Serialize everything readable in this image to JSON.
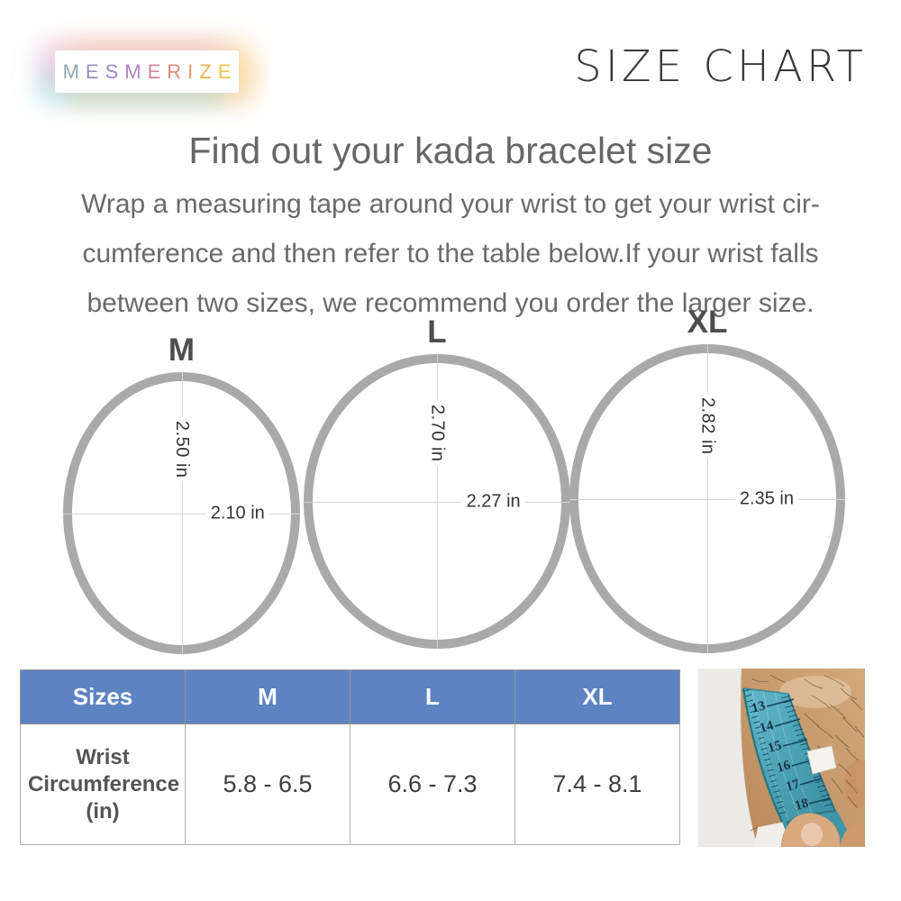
{
  "brand": {
    "name": "MESMERIZE",
    "letters": [
      {
        "char": "M",
        "color": "#8da8b4"
      },
      {
        "char": "E",
        "color": "#9595bd"
      },
      {
        "char": "S",
        "color": "#9e87c1"
      },
      {
        "char": "M",
        "color": "#b385bd"
      },
      {
        "char": "E",
        "color": "#d2849b"
      },
      {
        "char": "R",
        "color": "#e08a7c"
      },
      {
        "char": "I",
        "color": "#e59c69"
      },
      {
        "char": "Z",
        "color": "#e8b056"
      },
      {
        "char": "E",
        "color": "#ecc44e"
      }
    ]
  },
  "page_title": "SIZE CHART",
  "heading": "Find out your kada bracelet size",
  "description_lines": [
    "Wrap a measuring tape around your wrist to get your wrist cir-",
    "cumference and then refer to the table below.If your wrist falls",
    "between two sizes, we recommend you order the larger size."
  ],
  "bracelets": [
    {
      "label": "M",
      "vertical_diameter": "2.50 in",
      "horizontal_diameter": "2.10 in"
    },
    {
      "label": "L",
      "vertical_diameter": "2.70 in",
      "horizontal_diameter": "2.27 in"
    },
    {
      "label": "XL",
      "vertical_diameter": "2.82 in",
      "horizontal_diameter": "2.35 in"
    }
  ],
  "table": {
    "headers": [
      "Sizes",
      "M",
      "L",
      "XL"
    ],
    "row_label": "Wrist Circumference (in)",
    "values": [
      "5.8 - 6.5",
      "6.6 - 7.3",
      "7.4 - 8.1"
    ],
    "header_bg": "#5d83c3",
    "header_text_color": "#ffffff"
  },
  "photo": {
    "tape_numbers": [
      "13",
      "14",
      "15",
      "16",
      "17",
      "18"
    ],
    "tape_color": "#4ba3b4"
  },
  "colors": {
    "ring_gray": "#a9a9a9",
    "body_text_gray": "#6a6a6a",
    "title_dark": "#383838"
  }
}
